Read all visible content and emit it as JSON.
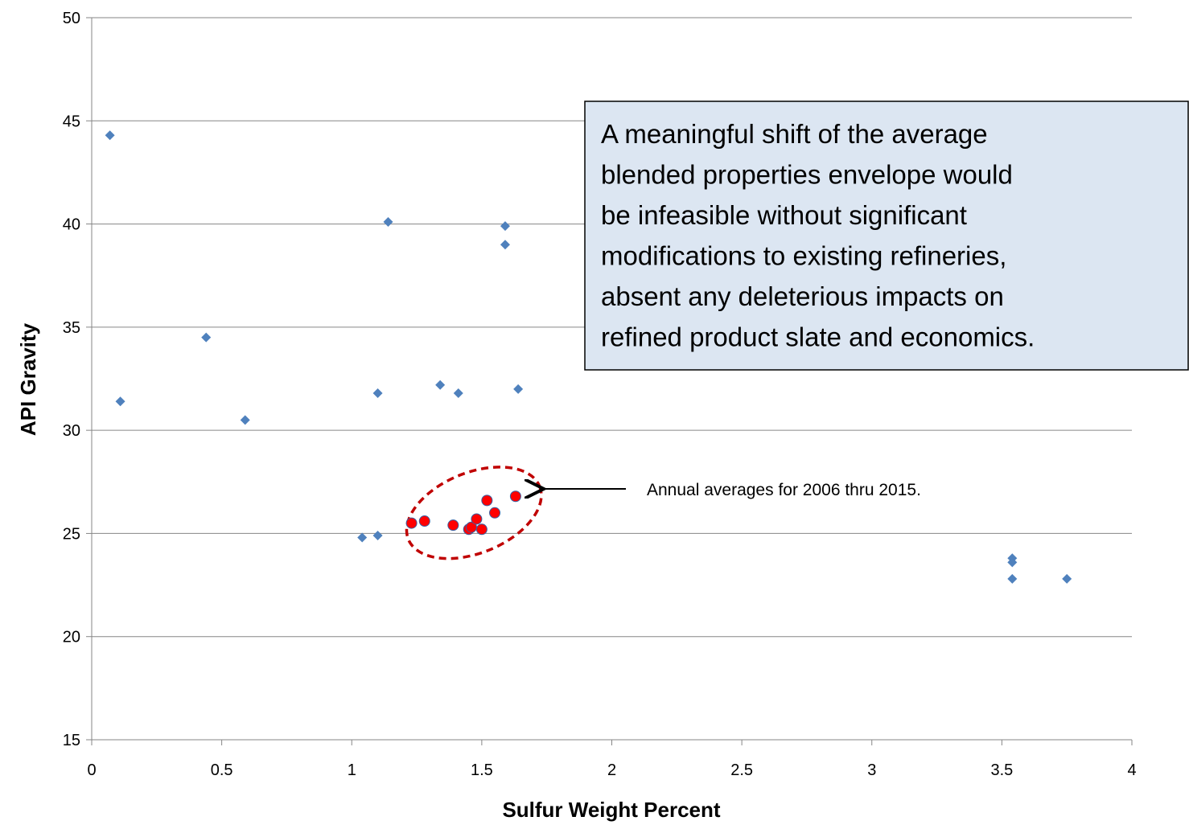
{
  "chart_data": {
    "type": "scatter",
    "title": "",
    "xlabel": "Sulfur Weight Percent",
    "ylabel": "API Gravity",
    "xlim": [
      0,
      4
    ],
    "ylim": [
      15,
      50
    ],
    "x_ticks": [
      "0",
      "0.5",
      "1",
      "1.5",
      "2",
      "2.5",
      "3",
      "3.5",
      "4"
    ],
    "y_ticks": [
      "15",
      "20",
      "25",
      "30",
      "35",
      "40",
      "45",
      "50"
    ],
    "grid": "horizontal",
    "legend": "none",
    "series": [
      {
        "color": "#4f81bd",
        "marker": "diamond",
        "points": [
          [
            0.07,
            44.3
          ],
          [
            0.11,
            31.4
          ],
          [
            0.44,
            34.5
          ],
          [
            0.59,
            30.5
          ],
          [
            1.04,
            24.8
          ],
          [
            1.1,
            24.9
          ],
          [
            1.1,
            31.8
          ],
          [
            1.14,
            40.1
          ],
          [
            1.34,
            32.2
          ],
          [
            1.41,
            31.8
          ],
          [
            1.59,
            39.9
          ],
          [
            1.59,
            39.0
          ],
          [
            1.64,
            32.0
          ],
          [
            3.54,
            23.8
          ],
          [
            3.54,
            23.6
          ],
          [
            3.54,
            22.8
          ],
          [
            3.75,
            22.8
          ]
        ]
      },
      {
        "color": "#ff0000",
        "marker": "circle",
        "points": [
          [
            1.23,
            25.5
          ],
          [
            1.28,
            25.6
          ],
          [
            1.39,
            25.4
          ],
          [
            1.45,
            25.2
          ],
          [
            1.46,
            25.3
          ],
          [
            1.48,
            25.7
          ],
          [
            1.5,
            25.2
          ],
          [
            1.52,
            26.6
          ],
          [
            1.55,
            26.0
          ],
          [
            1.63,
            26.8
          ]
        ]
      }
    ],
    "annotations": {
      "arrow_label": "Annual averages  for 2006 thru 2015.",
      "callout_lines": [
        "A meaningful shift of the average",
        "blended properties envelope would",
        "be infeasible without significant",
        "modifications to existing refineries,",
        "absent any deleterious impacts on",
        "refined product slate and economics."
      ]
    },
    "colors": {
      "callout_fill": "#dce6f2",
      "ellipse_stroke": "#c00000",
      "gridline": "#868686"
    }
  }
}
